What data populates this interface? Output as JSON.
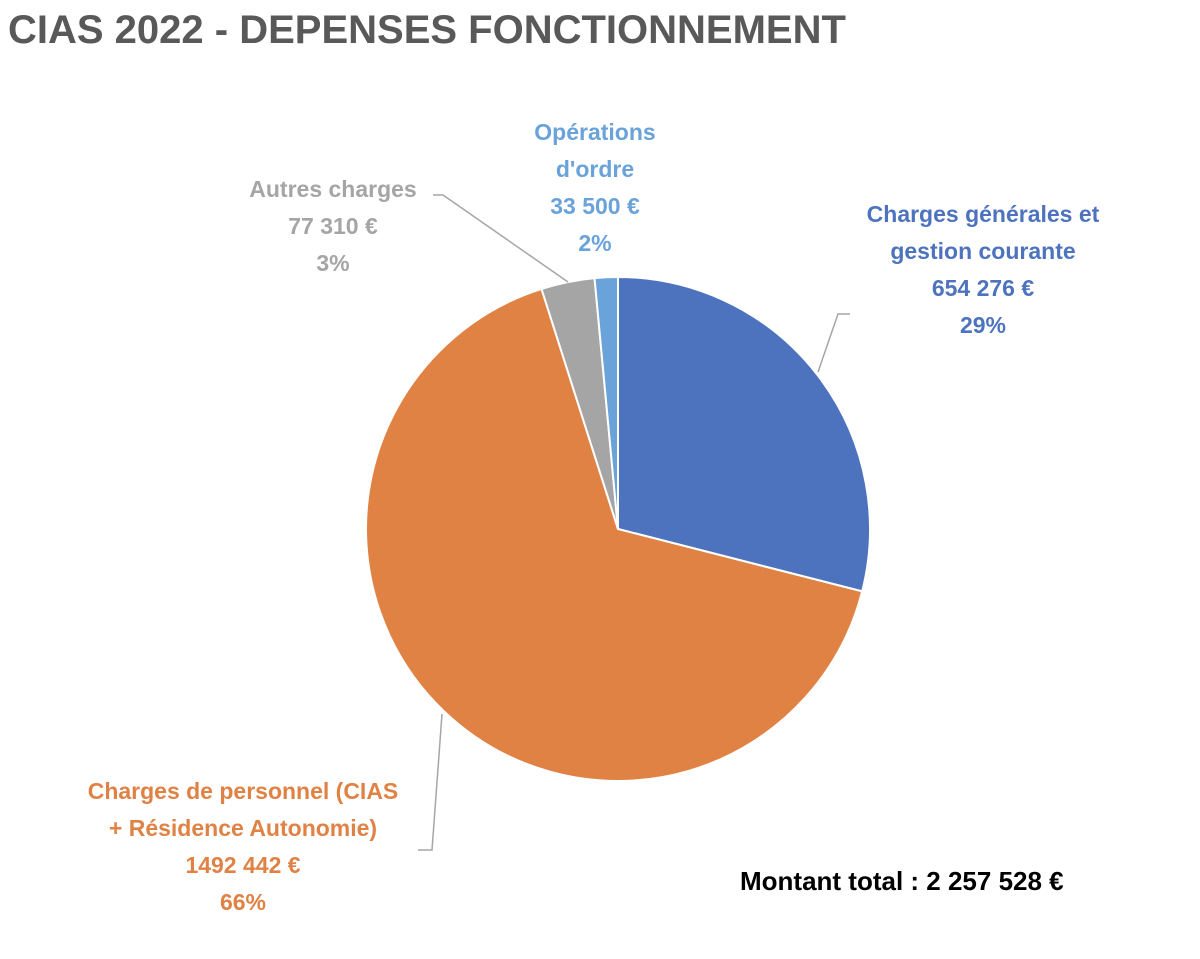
{
  "chart_data": {
    "type": "pie",
    "title": "CIAS 2022 - DEPENSES FONCTIONNEMENT",
    "slices": [
      {
        "name": "Charges générales et gestion courante",
        "label_lines": [
          "Charges générales et",
          "gestion courante"
        ],
        "amount": "654 276 €",
        "value": 654276,
        "percent": "29%",
        "color": "#4E73BE"
      },
      {
        "name": "Charges de personnel (CIAS + Résidence Autonomie)",
        "label_lines": [
          "Charges de personnel (CIAS",
          "+ Résidence Autonomie)"
        ],
        "amount": "1492 442 €",
        "value": 1492442,
        "percent": "66%",
        "color": "#E08244"
      },
      {
        "name": "Autres charges",
        "label_lines": [
          "Autres charges"
        ],
        "amount": "77 310 €",
        "value": 77310,
        "percent": "3%",
        "color": "#A5A5A5"
      },
      {
        "name": "Opérations d'ordre",
        "label_lines": [
          "Opérations",
          "d'ordre"
        ],
        "amount": "33 500 €",
        "value": 33500,
        "percent": "2%",
        "color": "#6AA2DA"
      }
    ],
    "start_angle": "12 o'clock",
    "direction": "clockwise",
    "leader_color": "#A6A6A6"
  },
  "total": "Montant total : 2 257 528 €"
}
